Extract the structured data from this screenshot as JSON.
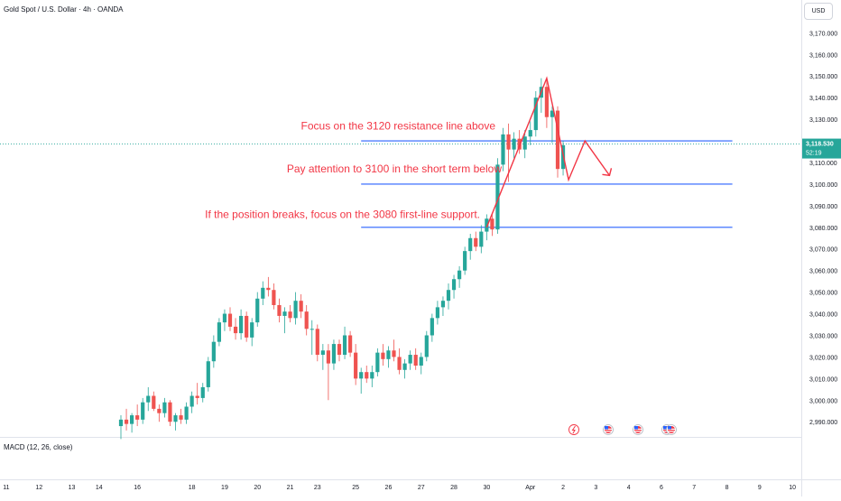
{
  "header": {
    "title": "Gold Spot / U.S. Dollar · 4h · OANDA",
    "currency": "USD"
  },
  "indicator": {
    "label": "MACD (12, 26, close)"
  },
  "price_label": {
    "value": "3,118.530",
    "countdown": "52:19"
  },
  "colors": {
    "up": "#26a69a",
    "down": "#ef5350",
    "line": "#2962ff",
    "note": "#f23645",
    "last": "#26a69a"
  },
  "chart_data": {
    "type": "candlestick",
    "ylim": [
      2983,
      3176
    ],
    "y_ticks": [
      2990,
      3000,
      3010,
      3020,
      3030,
      3040,
      3050,
      3060,
      3070,
      3080,
      3090,
      3100,
      3110,
      3120,
      3130,
      3140,
      3150,
      3160,
      3170
    ],
    "y_tick_labels": [
      "2,990.000",
      "3,000.000",
      "3,010.000",
      "3,020.000",
      "3,030.000",
      "3,040.000",
      "3,050.000",
      "3,060.000",
      "3,070.000",
      "3,080.000",
      "3,090.000",
      "3,100.000",
      "3,110.000",
      "3,120.000",
      "3,130.000",
      "3,140.000",
      "3,150.000",
      "3,160.000",
      "3,170.000"
    ],
    "x_tick_labels": [
      "11",
      "12",
      "13",
      "14",
      "16",
      "18",
      "19",
      "20",
      "21",
      "23",
      "25",
      "26",
      "27",
      "28",
      "30",
      "Apr",
      "2",
      "3",
      "4",
      "6",
      "7",
      "8",
      "9",
      "10"
    ],
    "x_tick_index": [
      -21,
      -15,
      -9,
      -4,
      3,
      13,
      19,
      25,
      31,
      36,
      43,
      49,
      55,
      61,
      67,
      75,
      81,
      87,
      93,
      99,
      105,
      111,
      117,
      123
    ],
    "levels": [
      3120,
      3100,
      3080
    ],
    "last_price": 3118.53,
    "candles": [
      [
        2988,
        2993,
        2982,
        2991
      ],
      [
        2991,
        2996,
        2986,
        2989
      ],
      [
        2989,
        2994,
        2985,
        2993
      ],
      [
        2993,
        2998,
        2988,
        2991
      ],
      [
        2991,
        3001,
        2989,
        2999
      ],
      [
        2999,
        3006,
        2995,
        3002
      ],
      [
        3002,
        3004,
        2995,
        2996
      ],
      [
        2996,
        2998,
        2990,
        2994
      ],
      [
        2994,
        3001,
        2992,
        2999
      ],
      [
        2999,
        3000,
        2988,
        2990
      ],
      [
        2990,
        2994,
        2986,
        2993
      ],
      [
        2993,
        2996,
        2989,
        2991
      ],
      [
        2991,
        2999,
        2989,
        2997
      ],
      [
        2997,
        3004,
        2994,
        3002
      ],
      [
        3002,
        3008,
        2998,
        3001
      ],
      [
        3001,
        3008,
        2999,
        3006
      ],
      [
        3006,
        3020,
        3004,
        3018
      ],
      [
        3018,
        3030,
        3015,
        3027
      ],
      [
        3027,
        3038,
        3025,
        3036
      ],
      [
        3036,
        3042,
        3032,
        3040
      ],
      [
        3040,
        3043,
        3032,
        3034
      ],
      [
        3034,
        3038,
        3028,
        3031
      ],
      [
        3031,
        3042,
        3028,
        3039
      ],
      [
        3039,
        3041,
        3027,
        3029
      ],
      [
        3029,
        3038,
        3025,
        3036
      ],
      [
        3036,
        3050,
        3034,
        3047
      ],
      [
        3047,
        3055,
        3044,
        3052
      ],
      [
        3052,
        3057,
        3048,
        3051
      ],
      [
        3051,
        3054,
        3042,
        3044
      ],
      [
        3044,
        3047,
        3036,
        3039
      ],
      [
        3039,
        3043,
        3031,
        3041
      ],
      [
        3041,
        3044,
        3036,
        3038
      ],
      [
        3038,
        3050,
        3035,
        3046
      ],
      [
        3046,
        3049,
        3038,
        3041
      ],
      [
        3041,
        3044,
        3030,
        3033
      ],
      [
        3033,
        3037,
        3021,
        3033
      ],
      [
        3033,
        3035,
        3018,
        3021
      ],
      [
        3021,
        3026,
        3014,
        3023
      ],
      [
        3023,
        3026,
        3000,
        3017
      ],
      [
        3017,
        3028,
        3014,
        3026
      ],
      [
        3026,
        3028,
        3018,
        3021
      ],
      [
        3021,
        3034,
        3019,
        3030
      ],
      [
        3030,
        3032,
        3020,
        3022
      ],
      [
        3022,
        3026,
        3007,
        3010
      ],
      [
        3010,
        3015,
        3003,
        3013
      ],
      [
        3013,
        3016,
        3008,
        3010
      ],
      [
        3010,
        3016,
        3006,
        3013
      ],
      [
        3013,
        3024,
        3011,
        3022
      ],
      [
        3022,
        3026,
        3016,
        3019
      ],
      [
        3019,
        3025,
        3015,
        3023
      ],
      [
        3023,
        3028,
        3018,
        3020
      ],
      [
        3020,
        3024,
        3012,
        3014
      ],
      [
        3014,
        3019,
        3010,
        3017
      ],
      [
        3017,
        3023,
        3014,
        3021
      ],
      [
        3021,
        3024,
        3014,
        3016
      ],
      [
        3016,
        3022,
        3012,
        3020
      ],
      [
        3020,
        3032,
        3018,
        3030
      ],
      [
        3030,
        3040,
        3027,
        3038
      ],
      [
        3038,
        3046,
        3035,
        3043
      ],
      [
        3043,
        3048,
        3039,
        3046
      ],
      [
        3046,
        3054,
        3042,
        3051
      ],
      [
        3051,
        3058,
        3047,
        3056
      ],
      [
        3056,
        3062,
        3052,
        3060
      ],
      [
        3060,
        3071,
        3058,
        3069
      ],
      [
        3069,
        3077,
        3065,
        3075
      ],
      [
        3075,
        3078,
        3069,
        3071
      ],
      [
        3071,
        3081,
        3068,
        3078
      ],
      [
        3078,
        3086,
        3074,
        3084
      ],
      [
        3084,
        3086,
        3076,
        3079
      ],
      [
        3079,
        3112,
        3077,
        3109
      ],
      [
        3109,
        3126,
        3106,
        3123
      ],
      [
        3123,
        3128,
        3101,
        3116
      ],
      [
        3116,
        3124,
        3112,
        3121
      ],
      [
        3121,
        3125,
        3114,
        3116
      ],
      [
        3116,
        3125,
        3112,
        3122
      ],
      [
        3122,
        3129,
        3118,
        3125
      ],
      [
        3125,
        3143,
        3122,
        3140
      ],
      [
        3140,
        3149,
        3133,
        3145
      ],
      [
        3145,
        3148,
        3126,
        3131
      ],
      [
        3131,
        3136,
        3119,
        3134
      ],
      [
        3134,
        3136,
        3103,
        3107
      ],
      [
        3107,
        3120,
        3104,
        3118
      ]
    ]
  },
  "annotations": [
    {
      "text": "Focus on the 3120 resistance line above",
      "level": 3127
    },
    {
      "text": "Pay attention to 3100 in the short term below",
      "level": 3107
    },
    {
      "text": "If the position breaks, focus on the 3080 first-line support.",
      "level": 3086
    }
  ]
}
